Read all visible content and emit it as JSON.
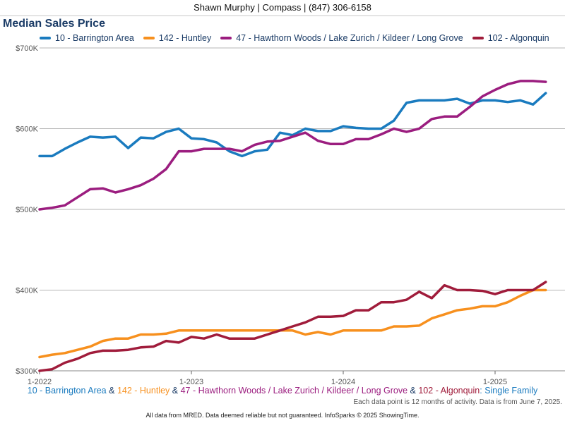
{
  "header": {
    "text": "Shawn Murphy | Compass | (847) 306-6158"
  },
  "subtitle": {
    "parts": [
      {
        "text": "10 - Barrington Area",
        "color": "#1a7bbf"
      },
      {
        "text": " & ",
        "color": "#1a3b66"
      },
      {
        "text": "142 - Huntley",
        "color": "#f7901e"
      },
      {
        "text": " & ",
        "color": "#1a3b66"
      },
      {
        "text": "47 - Hawthorn Woods / Lake Zurich / Kildeer / Long Grove",
        "color": "#9b1d7f"
      },
      {
        "text": " & ",
        "color": "#1a3b66"
      },
      {
        "text": "102 - Algonquin",
        "color": "#a01c3b"
      },
      {
        "text": ": Single Family",
        "color": "#1a7bbf"
      }
    ]
  },
  "note": "Each data point is 12 months of activity. Data is from June 7, 2025.",
  "footer": "All data from MRED. Data deemed reliable but not guaranteed. InfoSparks © 2025 ShowingTime.",
  "chart_data": {
    "type": "line",
    "title": "Median Sales Price",
    "xlabel": "",
    "ylabel": "",
    "ylim": [
      300000,
      700000
    ],
    "y_ticks": [
      {
        "value": 300000,
        "label": "$300K"
      },
      {
        "value": 400000,
        "label": "$400K"
      },
      {
        "value": 500000,
        "label": "$500K"
      },
      {
        "value": 600000,
        "label": "$600K"
      },
      {
        "value": 700000,
        "label": "$700K"
      }
    ],
    "x_ticks": [
      {
        "date": "2022-01",
        "label": "1-2022"
      },
      {
        "date": "2023-01",
        "label": "1-2023"
      },
      {
        "date": "2024-01",
        "label": "1-2024"
      },
      {
        "date": "2025-01",
        "label": "1-2025"
      }
    ],
    "x": [
      "2022-01",
      "2022-02",
      "2022-03",
      "2022-04",
      "2022-05",
      "2022-06",
      "2022-07",
      "2022-08",
      "2022-09",
      "2022-10",
      "2022-11",
      "2022-12",
      "2023-01",
      "2023-02",
      "2023-03",
      "2023-04",
      "2023-05",
      "2023-06",
      "2023-07",
      "2023-08",
      "2023-09",
      "2023-10",
      "2023-11",
      "2023-12",
      "2024-01",
      "2024-02",
      "2024-03",
      "2024-04",
      "2024-05",
      "2024-06",
      "2024-07",
      "2024-08",
      "2024-09",
      "2024-10",
      "2024-11",
      "2024-12",
      "2025-01",
      "2025-02",
      "2025-03",
      "2025-04",
      "2025-05"
    ],
    "grid": true,
    "legend_position": "top-left",
    "series": [
      {
        "name": "10 - Barrington Area",
        "color": "#1a7bbf",
        "values": [
          566000,
          566000,
          575000,
          583000,
          590000,
          589000,
          590000,
          576000,
          589000,
          588000,
          596000,
          600000,
          588000,
          587000,
          583000,
          572000,
          566000,
          572000,
          574000,
          595000,
          592000,
          600000,
          597000,
          597000,
          603000,
          601000,
          600000,
          600000,
          610000,
          632000,
          635000,
          635000,
          635000,
          637000,
          631000,
          635000,
          635000,
          633000,
          635000,
          630000,
          644000
        ]
      },
      {
        "name": "142 - Huntley",
        "color": "#f7901e",
        "values": [
          317000,
          320000,
          322000,
          326000,
          330000,
          337000,
          340000,
          340000,
          345000,
          345000,
          346000,
          350000,
          350000,
          350000,
          350000,
          350000,
          350000,
          350000,
          350000,
          350000,
          350000,
          345000,
          348000,
          345000,
          350000,
          350000,
          350000,
          350000,
          355000,
          355000,
          356000,
          365000,
          370000,
          375000,
          377000,
          380000,
          380000,
          385000,
          393000,
          400000,
          400000
        ]
      },
      {
        "name": "47 - Hawthorn Woods / Lake Zurich / Kildeer / Long Grove",
        "color": "#9b1d7f",
        "values": [
          500000,
          502000,
          505000,
          515000,
          525000,
          526000,
          521000,
          525000,
          530000,
          538000,
          550000,
          572000,
          572000,
          575000,
          575000,
          575000,
          572000,
          580000,
          584000,
          585000,
          590000,
          595000,
          585000,
          581000,
          581000,
          587000,
          587000,
          593000,
          600000,
          596000,
          600000,
          612000,
          615000,
          615000,
          627000,
          640000,
          648000,
          655000,
          659000,
          659000,
          658000
        ]
      },
      {
        "name": "102 - Algonquin",
        "color": "#a01c3b",
        "values": [
          300000,
          302000,
          310000,
          315000,
          322000,
          325000,
          325000,
          326000,
          329000,
          330000,
          337000,
          335000,
          342000,
          340000,
          345000,
          340000,
          340000,
          340000,
          345000,
          350000,
          355000,
          360000,
          367000,
          367000,
          368000,
          375000,
          375000,
          385000,
          385000,
          388000,
          398000,
          390000,
          406000,
          400000,
          400000,
          399000,
          395000,
          400000,
          400000,
          400000,
          410000
        ]
      }
    ]
  }
}
